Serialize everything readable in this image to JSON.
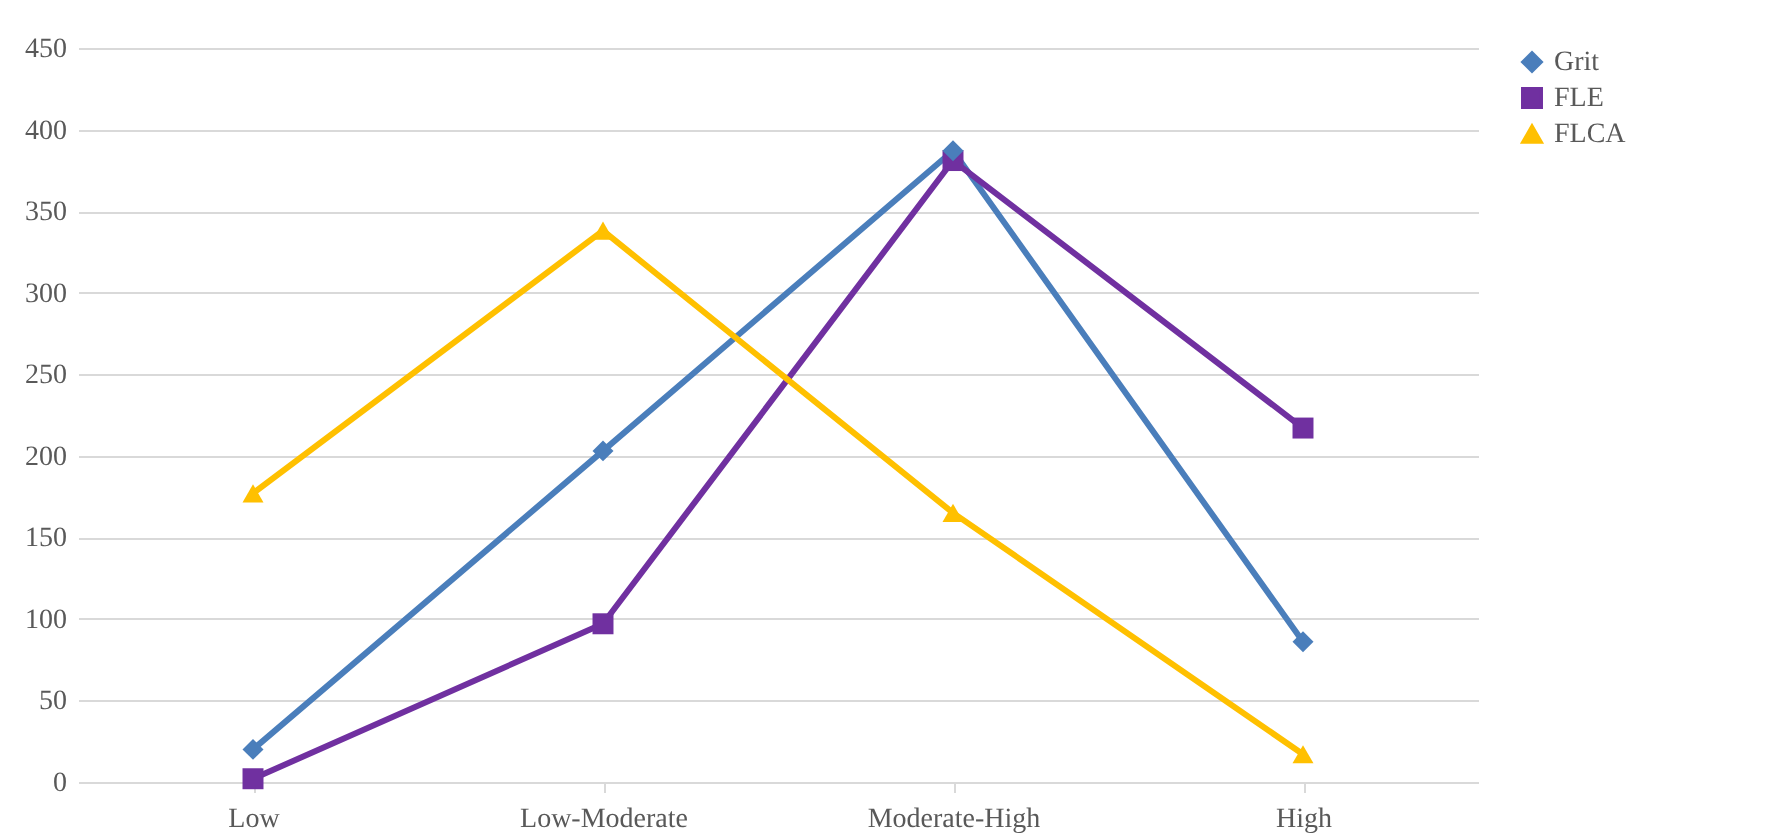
{
  "chart_data": {
    "type": "line",
    "categories": [
      "Low",
      "Low-Moderate",
      "Moderate-High",
      "High"
    ],
    "series": [
      {
        "name": "Grit",
        "color": "#4a7ebb",
        "marker": "diamond",
        "values": [
          20,
          203,
          387,
          86
        ]
      },
      {
        "name": "FLE",
        "color": "#7030a0",
        "marker": "square",
        "values": [
          2,
          97,
          381,
          217
        ]
      },
      {
        "name": "FLCA",
        "color": "#ffc000",
        "marker": "triangle",
        "values": [
          177,
          338,
          165,
          17
        ]
      }
    ],
    "ylim": [
      0,
      450
    ],
    "yticks": [
      0,
      50,
      100,
      150,
      200,
      250,
      300,
      350,
      400,
      450
    ],
    "grid": "y",
    "legend": "right"
  }
}
